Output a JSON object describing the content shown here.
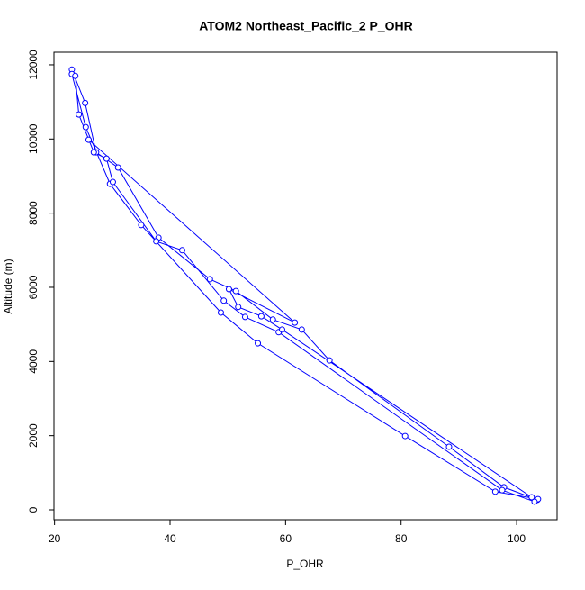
{
  "chart_data": {
    "type": "line",
    "title": "ATOM2 Northeast_Pacific_2 P_OHR",
    "x_label": "P_OHR",
    "y_label": "Altitude (m)",
    "x": [
      23,
      25.3,
      27.2,
      31,
      38,
      46.9,
      51.4,
      57.8,
      62.8,
      67.6,
      88.3,
      97.8,
      103.6,
      103.7,
      96.3,
      80.7,
      55.2,
      48.8,
      35,
      29.6,
      25.4,
      23,
      23.6,
      24.2,
      26.8,
      29,
      30.1,
      37.6,
      42.1,
      49.3,
      53,
      58.8,
      97.5,
      103.1,
      102.6,
      59.4,
      55.8,
      51.8,
      50.2,
      61.6,
      25.9
    ],
    "series": [
      {
        "name": "P_OHR",
        "color": "#0000ff",
        "values": [
          11870,
          10970,
          9640,
          9230,
          7340,
          6220,
          5900,
          5130,
          4860,
          4030,
          1700,
          610,
          270,
          290,
          490,
          1990,
          4490,
          5320,
          7680,
          8790,
          10320,
          11750,
          11700,
          10660,
          9640,
          9470,
          8840,
          7240,
          7000,
          5640,
          5200,
          4790,
          530,
          220,
          340,
          4860,
          5220,
          5470,
          5950,
          5050,
          9980
        ]
      }
    ],
    "xlim": [
      19.9,
      107
    ],
    "ylim": [
      -267,
      12339
    ],
    "xticks": [
      20,
      40,
      60,
      80,
      100
    ],
    "yticks": [
      0,
      2000,
      4000,
      6000,
      8000,
      10000,
      12000
    ],
    "grid": false
  }
}
